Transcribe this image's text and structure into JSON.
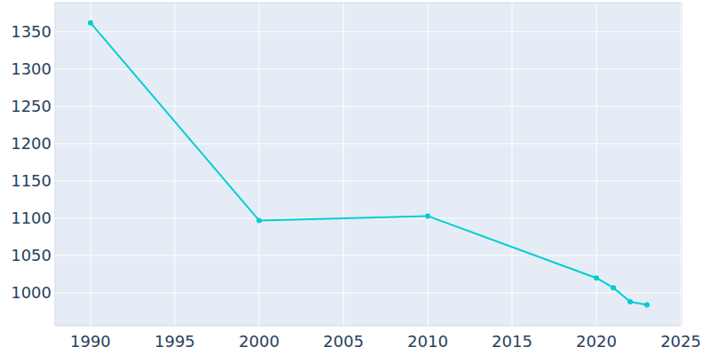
{
  "chart_data": {
    "type": "line",
    "x": [
      1990,
      2000,
      2010,
      2020,
      2021,
      2022,
      2023
    ],
    "values": [
      1362,
      1097,
      1103,
      1020,
      1007,
      988,
      984
    ],
    "color": "#00CED1",
    "marker": "circle",
    "grid": true,
    "xlim": [
      1987.9,
      2025.05
    ],
    "xticks": [
      1990,
      1995,
      2000,
      2005,
      2010,
      2015,
      2020,
      2025
    ],
    "ylim": [
      956,
      1389
    ],
    "yticks": [
      1000,
      1050,
      1100,
      1150,
      1200,
      1250,
      1300,
      1350
    ]
  }
}
